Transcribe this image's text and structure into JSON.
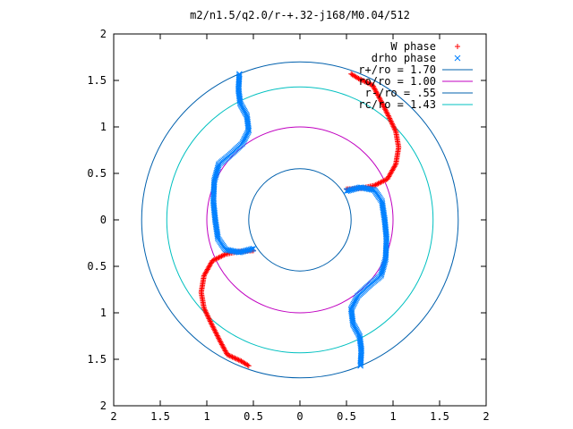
{
  "chart_data": {
    "type": "scatter",
    "title": "m2/n1.5/q2.0/r-+.32-j168/M0.04/512",
    "xlabel": "",
    "ylabel": "",
    "xlim": [
      -2,
      2
    ],
    "ylim": [
      -2,
      2
    ],
    "x_ticks": [
      -2,
      -1.5,
      -1,
      -0.5,
      0,
      0.5,
      1,
      1.5,
      2
    ],
    "y_ticks": [
      -2,
      -1.5,
      -1,
      -0.5,
      0,
      0.5,
      1,
      1.5,
      2
    ],
    "x_tick_labels": [
      "2",
      "1.5",
      "1",
      "0.5",
      "0",
      "0.5",
      "1",
      "1.5",
      "2"
    ],
    "y_tick_labels": [
      "2",
      "1.5",
      "1",
      "0.5",
      "0",
      "0.5",
      "1",
      "1.5",
      "2"
    ],
    "grid": false,
    "legend_position": "top-right",
    "series": [
      {
        "name": "W phase",
        "kind": "points",
        "marker": "plus",
        "color": "#ff0000",
        "arms": [
          [
            [
              0.55,
              1.57
            ],
            [
              0.63,
              1.52
            ],
            [
              0.78,
              1.45
            ],
            [
              0.86,
              1.3
            ],
            [
              0.95,
              1.12
            ],
            [
              1.03,
              0.95
            ],
            [
              1.06,
              0.78
            ],
            [
              1.03,
              0.6
            ],
            [
              0.94,
              0.44
            ],
            [
              0.8,
              0.37
            ],
            [
              0.66,
              0.34
            ],
            [
              0.5,
              0.33
            ]
          ],
          [
            [
              -0.55,
              -1.57
            ],
            [
              -0.63,
              -1.52
            ],
            [
              -0.78,
              -1.45
            ],
            [
              -0.86,
              -1.3
            ],
            [
              -0.95,
              -1.12
            ],
            [
              -1.03,
              -0.95
            ],
            [
              -1.06,
              -0.78
            ],
            [
              -1.03,
              -0.6
            ],
            [
              -0.94,
              -0.44
            ],
            [
              -0.8,
              -0.37
            ],
            [
              -0.66,
              -0.34
            ],
            [
              -0.5,
              -0.33
            ]
          ]
        ]
      },
      {
        "name": "drho phase",
        "kind": "points",
        "marker": "cross",
        "color": "#0080ff",
        "arms": [
          [
            [
              -0.65,
              1.57
            ],
            [
              -0.66,
              1.4
            ],
            [
              -0.64,
              1.25
            ],
            [
              -0.57,
              1.12
            ],
            [
              -0.55,
              0.96
            ],
            [
              -0.62,
              0.82
            ],
            [
              -0.76,
              0.69
            ],
            [
              -0.87,
              0.6
            ],
            [
              -0.92,
              0.42
            ],
            [
              -0.93,
              0.2
            ],
            [
              -0.91,
              0.0
            ],
            [
              -0.88,
              -0.2
            ],
            [
              -0.8,
              -0.32
            ],
            [
              -0.65,
              -0.35
            ],
            [
              -0.5,
              -0.31
            ]
          ],
          [
            [
              0.65,
              -1.57
            ],
            [
              0.66,
              -1.4
            ],
            [
              0.64,
              -1.25
            ],
            [
              0.57,
              -1.12
            ],
            [
              0.55,
              -0.96
            ],
            [
              0.62,
              -0.82
            ],
            [
              0.76,
              -0.69
            ],
            [
              0.87,
              -0.6
            ],
            [
              0.92,
              -0.42
            ],
            [
              0.93,
              -0.2
            ],
            [
              0.91,
              0.0
            ],
            [
              0.88,
              0.2
            ],
            [
              0.8,
              0.32
            ],
            [
              0.65,
              0.35
            ],
            [
              0.5,
              0.31
            ]
          ]
        ]
      },
      {
        "name": "r+/ro = 1.70",
        "kind": "circle",
        "radius": 1.7,
        "color": "#0060ad"
      },
      {
        "name": "ro/ro = 1.00",
        "kind": "circle",
        "radius": 1.0,
        "color": "#c000c0"
      },
      {
        "name": "r-/ro = .55",
        "kind": "circle",
        "radius": 0.55,
        "color": "#0060ad"
      },
      {
        "name": "rc/ro = 1.43",
        "kind": "circle",
        "radius": 1.43,
        "color": "#00c0c0"
      }
    ]
  }
}
